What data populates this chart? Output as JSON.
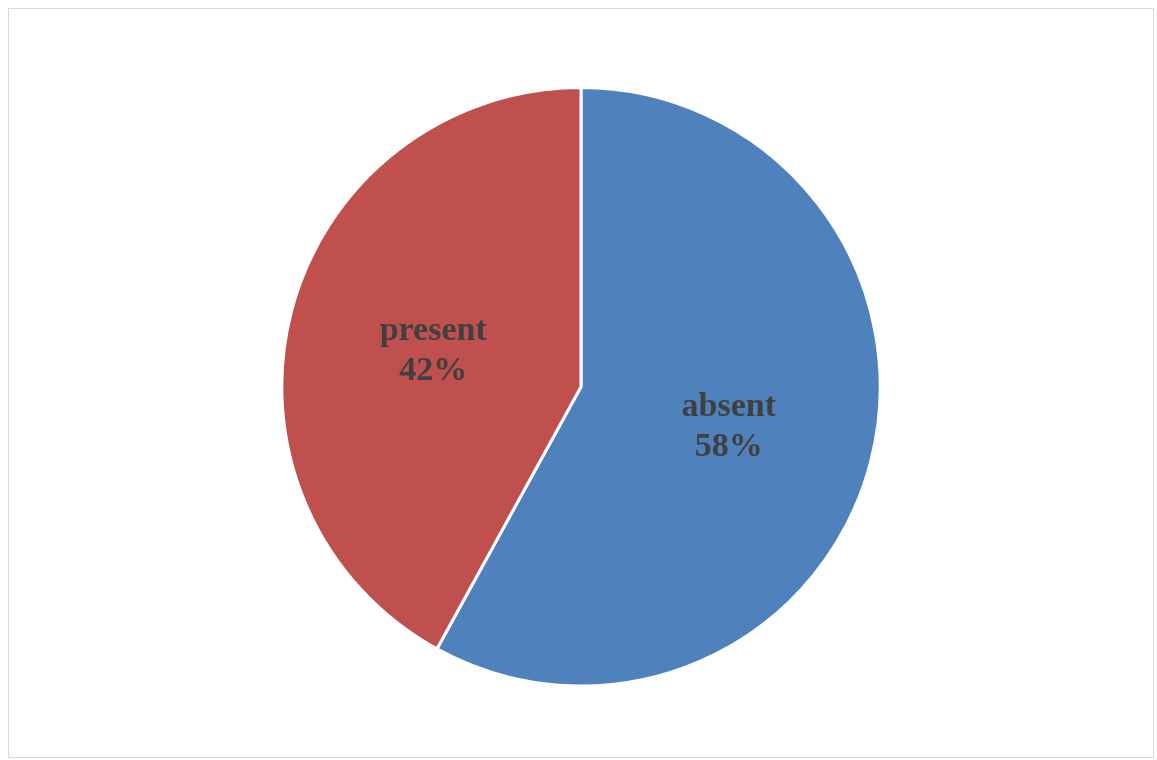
{
  "chart_data": {
    "type": "pie",
    "categories": [
      "absent",
      "present"
    ],
    "values": [
      58,
      42
    ],
    "colors": [
      "#4f81bd",
      "#c0504d"
    ],
    "value_labels": [
      "58%",
      "42%"
    ],
    "legend": false
  }
}
